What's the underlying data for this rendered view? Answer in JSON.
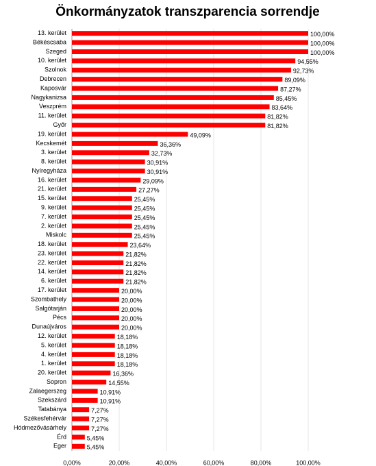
{
  "chart_data": {
    "type": "barh",
    "title": "Önkormányzatok transzparencia sorrendje",
    "categories": [
      "13. kerület",
      "Békéscsaba",
      "Szeged",
      "10. kerület",
      "Szolnok",
      "Debrecen",
      "Kaposvár",
      "Nagykanizsa",
      "Veszprém",
      "11. kerület",
      "Győr",
      "19. kerület",
      "Kecskemét",
      "3. kerület",
      "8. kerület",
      "Nyíregyháza",
      "16. kerület",
      "21. kerület",
      "15. kerület",
      "9. kerület",
      "7. kerület",
      "2. kerület",
      "Miskolc",
      "18. kerület",
      "23. kerület",
      "22. kerület",
      "14. kerület",
      "6. kerület",
      "17. kerület",
      "Szombathely",
      "Salgótarján",
      "Pécs",
      "Dunaújváros",
      "12. kerület",
      "5. kerület",
      "4. kerület",
      "1. kerület",
      "20. kerület",
      "Sopron",
      "Zalaegerszeg",
      "Szekszárd",
      "Tatabánya",
      "Székesfehérvár",
      "Hódmezővásárhely",
      "Érd",
      "Eger"
    ],
    "values": [
      100,
      100,
      100,
      94.55,
      92.73,
      89.09,
      87.27,
      85.45,
      83.64,
      81.82,
      81.82,
      49.09,
      36.36,
      32.73,
      30.91,
      30.91,
      29.09,
      27.27,
      25.45,
      25.45,
      25.45,
      25.45,
      25.45,
      23.64,
      21.82,
      21.82,
      21.82,
      21.82,
      20,
      20,
      20,
      20,
      20,
      18.18,
      18.18,
      18.18,
      18.18,
      16.36,
      14.55,
      10.91,
      10.91,
      7.27,
      7.27,
      7.27,
      5.45,
      5.45
    ],
    "value_labels": [
      "100,00%",
      "100,00%",
      "100,00%",
      "94,55%",
      "92,73%",
      "89,09%",
      "87,27%",
      "85,45%",
      "83,64%",
      "81,82%",
      "81,82%",
      "49,09%",
      "36,36%",
      "32,73%",
      "30,91%",
      "30,91%",
      "29,09%",
      "27,27%",
      "25,45%",
      "25,45%",
      "25,45%",
      "25,45%",
      "25,45%",
      "23,64%",
      "21,82%",
      "21,82%",
      "21,82%",
      "21,82%",
      "20,00%",
      "20,00%",
      "20,00%",
      "20,00%",
      "20,00%",
      "18,18%",
      "18,18%",
      "18,18%",
      "18,18%",
      "16,36%",
      "14,55%",
      "10,91%",
      "10,91%",
      "7,27%",
      "7,27%",
      "7,27%",
      "5,45%",
      "5,45%"
    ],
    "color": "#ff0000",
    "xlim": [
      0,
      100
    ],
    "xticks": [
      {
        "value": 0,
        "label": "0,00%"
      },
      {
        "value": 20,
        "label": "20,00%"
      },
      {
        "value": 40,
        "label": "40,00%"
      },
      {
        "value": 60,
        "label": "60,00%"
      },
      {
        "value": 80,
        "label": "80,00%"
      },
      {
        "value": 100,
        "label": "100,00%"
      }
    ],
    "grid": true
  }
}
